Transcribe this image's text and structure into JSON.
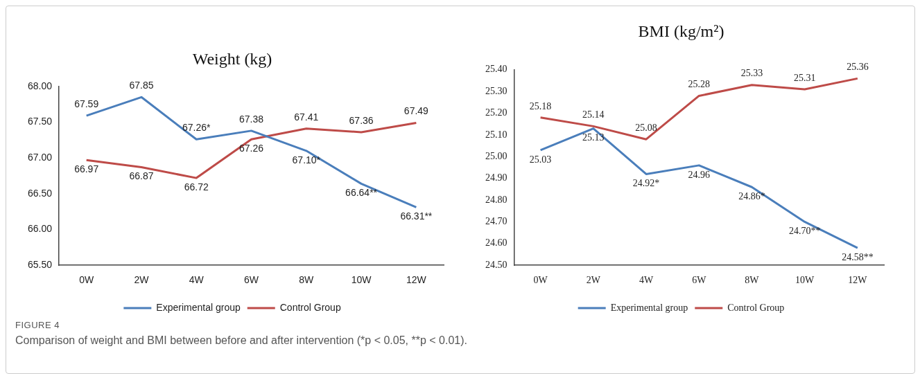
{
  "chart_data": [
    {
      "type": "line",
      "title": "Weight (kg)",
      "categories": [
        "0W",
        "2W",
        "4W",
        "6W",
        "8W",
        "10W",
        "12W"
      ],
      "series": [
        {
          "name": "Experimental group",
          "color": "#4a7ebb",
          "values": [
            67.59,
            67.85,
            67.26,
            67.38,
            67.1,
            66.64,
            66.31
          ],
          "value_labels": [
            "67.59",
            "67.85",
            "67.26*",
            "67.38",
            "67.10*",
            "66.64**",
            "66.31**"
          ]
        },
        {
          "name": "Control Group",
          "color": "#be4b48",
          "values": [
            66.97,
            66.87,
            66.72,
            67.26,
            67.41,
            67.36,
            67.49
          ],
          "value_labels": [
            "66.97",
            "66.87",
            "66.72",
            "67.26",
            "67.41",
            "67.36",
            "67.49"
          ]
        }
      ],
      "ylim": [
        65.5,
        68
      ],
      "yticks": [
        {
          "value": 65.5,
          "label": "65.50"
        },
        {
          "value": 66,
          "label": "66.00"
        },
        {
          "value": 66.5,
          "label": "66.50"
        },
        {
          "value": 67,
          "label": "67.00"
        },
        {
          "value": 67.5,
          "label": "67.50"
        },
        {
          "value": 68,
          "label": "68.00"
        }
      ],
      "grid": false,
      "legend": "bottom",
      "marker": "none",
      "line_style": "solid",
      "annotations": [
        "FIGURE 4",
        "Comparison of weight and BMI between before and after intervention (*p < 0.05, **p < 0.01)."
      ]
    },
    {
      "type": "line",
      "title": "BMI (kg/m²)",
      "categories": [
        "0W",
        "2W",
        "4W",
        "6W",
        "8W",
        "10W",
        "12W"
      ],
      "series": [
        {
          "name": "Experimental group",
          "color": "#4a7ebb",
          "values": [
            25.03,
            25.13,
            24.92,
            24.96,
            24.86,
            24.7,
            24.58
          ],
          "value_labels": [
            "25.03",
            "25.13",
            "24.92*",
            "24.96",
            "24.86*",
            "24.70**",
            "24.58**"
          ]
        },
        {
          "name": "Control Group",
          "color": "#be4b48",
          "values": [
            25.18,
            25.14,
            25.08,
            25.28,
            25.33,
            25.31,
            25.36
          ],
          "value_labels": [
            "25.18",
            "25.14",
            "25.08",
            "25.28",
            "25.33",
            "25.31",
            "25.36"
          ]
        }
      ],
      "ylim": [
        24.5,
        25.4
      ],
      "yticks": [
        {
          "value": 24.5,
          "label": "24.50"
        },
        {
          "value": 24.6,
          "label": "24.60"
        },
        {
          "value": 24.7,
          "label": "24.70"
        },
        {
          "value": 24.8,
          "label": "24.80"
        },
        {
          "value": 24.9,
          "label": "24.90"
        },
        {
          "value": 25,
          "label": "25.00"
        },
        {
          "value": 25.1,
          "label": "25.10"
        },
        {
          "value": 25.2,
          "label": "25.20"
        },
        {
          "value": 25.3,
          "label": "25.30"
        },
        {
          "value": 25.4,
          "label": "25.40"
        }
      ],
      "grid": false,
      "legend": "bottom",
      "marker": "none",
      "line_style": "solid"
    }
  ]
}
